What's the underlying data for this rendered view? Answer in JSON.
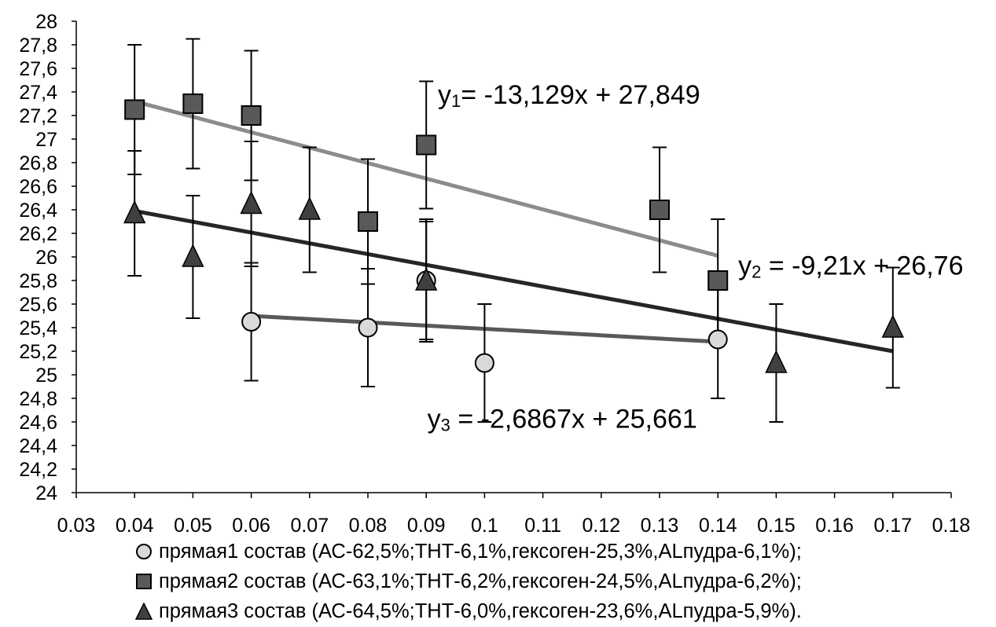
{
  "chart_data": {
    "type": "scatter",
    "xlim": [
      0.03,
      0.18
    ],
    "ylim": [
      24,
      28
    ],
    "x_ticks": [
      "0.03",
      "0.04",
      "0.05",
      "0.06",
      "0.07",
      "0.08",
      "0.09",
      "0.1",
      "0.11",
      "0.12",
      "0.13",
      "0.14",
      "0.15",
      "0.16",
      "0.17",
      "0.18"
    ],
    "y_ticks": [
      "24",
      "24,2",
      "24,4",
      "24,6",
      "24,8",
      "25",
      "25,2",
      "25,4",
      "25,6",
      "25,8",
      "26",
      "26,2",
      "26,4",
      "26,6",
      "26,8",
      "27",
      "27,2",
      "27,4",
      "27,6",
      "27,8",
      "28"
    ],
    "grid": false,
    "legend_position": "bottom",
    "series": [
      {
        "name": "прямая1 состав (АС-62,5%;ТНТ-6,1%,гексоген-25,3%,ALпудра-6,1%);",
        "marker": "circle",
        "fill": "#d9d9d9",
        "line_color": "#595959",
        "points": [
          {
            "x": 0.06,
            "y": 25.45,
            "err": 0.5
          },
          {
            "x": 0.08,
            "y": 25.4,
            "err": 0.5
          },
          {
            "x": 0.09,
            "y": 25.8,
            "err": 0.5
          },
          {
            "x": 0.1,
            "y": 25.1,
            "err": 0.5
          },
          {
            "x": 0.14,
            "y": 25.3,
            "err": 0.5
          }
        ],
        "trend": {
          "x": [
            0.06,
            0.14
          ],
          "y": [
            25.5,
            25.28
          ]
        }
      },
      {
        "name": "прямая2 состав (АС-63,1%;ТНТ-6,2%,гексоген-24,5%,ALпудра-6,2%);",
        "marker": "square",
        "fill": "#595959",
        "line_color": "#8c8c8c",
        "points": [
          {
            "x": 0.04,
            "y": 27.25,
            "err": 0.55
          },
          {
            "x": 0.05,
            "y": 27.3,
            "err": 0.55
          },
          {
            "x": 0.06,
            "y": 27.2,
            "err": 0.55
          },
          {
            "x": 0.08,
            "y": 26.3,
            "err": 0.53
          },
          {
            "x": 0.09,
            "y": 26.95,
            "err": 0.54
          },
          {
            "x": 0.13,
            "y": 26.4,
            "err": 0.53
          },
          {
            "x": 0.14,
            "y": 25.8,
            "err": 0.52
          }
        ],
        "trend": {
          "x": [
            0.04,
            0.14
          ],
          "y": [
            27.32,
            26.01
          ]
        }
      },
      {
        "name": "прямая3 состав (АС-64,5%;ТНТ-6,0%,гексоген-23,6%,ALпудра-5,9%).",
        "marker": "triangle",
        "fill": "#404040",
        "line_color": "#262626",
        "points": [
          {
            "x": 0.04,
            "y": 26.37,
            "err": 0.53
          },
          {
            "x": 0.05,
            "y": 26.0,
            "err": 0.52
          },
          {
            "x": 0.06,
            "y": 26.45,
            "err": 0.53
          },
          {
            "x": 0.07,
            "y": 26.4,
            "err": 0.53
          },
          {
            "x": 0.09,
            "y": 25.8,
            "err": 0.52
          },
          {
            "x": 0.15,
            "y": 25.1,
            "err": 0.5
          },
          {
            "x": 0.17,
            "y": 25.4,
            "err": 0.51
          }
        ],
        "trend": {
          "x": [
            0.04,
            0.17
          ],
          "y": [
            26.39,
            25.2
          ]
        }
      }
    ],
    "annotations": [
      {
        "prefix": "y",
        "sub": "1",
        "rest": "= -13,129x + 27,849",
        "x": 0.092,
        "y": 27.3
      },
      {
        "prefix": "y",
        "sub": "2",
        "rest": " = -9,21x + 26,76",
        "x": 0.1435,
        "y": 25.85
      },
      {
        "prefix": "y",
        "sub": "3",
        "rest": " = -2,6867x + 25,661",
        "x": 0.0902,
        "y": 24.55
      }
    ]
  }
}
